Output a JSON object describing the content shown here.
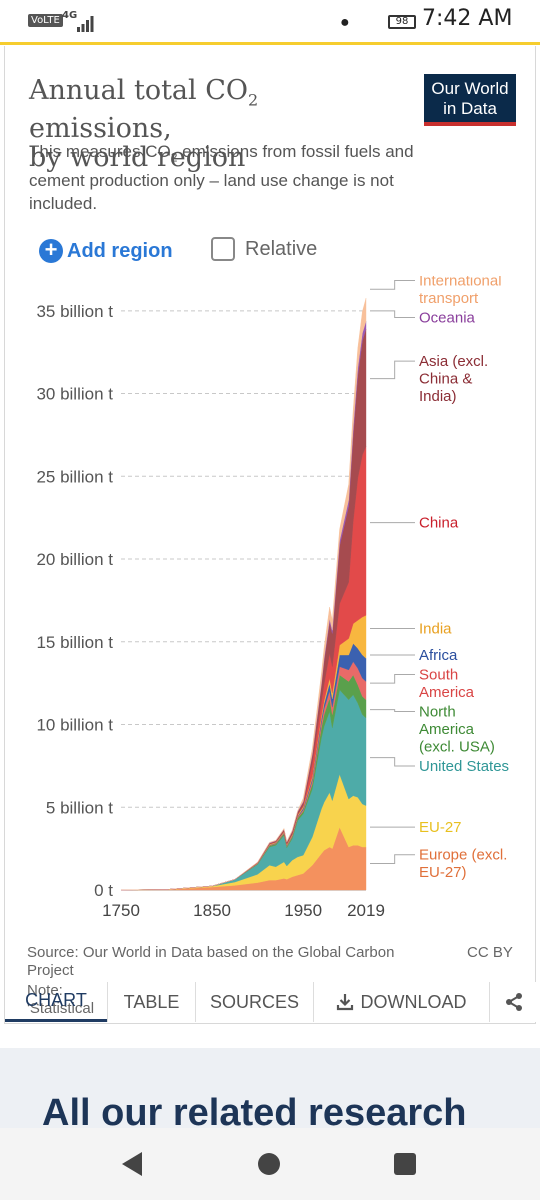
{
  "status_bar": {
    "volte": "VoLTE",
    "network": "4G",
    "battery": "98",
    "time": "7:42 AM"
  },
  "header": {
    "title_part1": "Annual total CO",
    "title_sub": "2",
    "title_part2": " emissions,",
    "title_line2": "by world region",
    "subtitle_part1": "This measures CO",
    "subtitle_sub": "2",
    "subtitle_part2": " emissions from fossil fuels and cement production only – land use change is not included.",
    "logo_line1": "Our World",
    "logo_line2": "in Data"
  },
  "controls": {
    "add_region": "Add region",
    "relative": "Relative",
    "relative_checked": false
  },
  "chart_data": {
    "type": "area",
    "stacked": true,
    "x_ticks": [
      "1750",
      "1850",
      "1950",
      "2019"
    ],
    "xlim": [
      1750,
      2019
    ],
    "y_ticks": [
      "0 t",
      "5 billion t",
      "10 billion t",
      "15 billion t",
      "20 billion t",
      "25 billion t",
      "30 billion t",
      "35 billion t"
    ],
    "y_tick_values": [
      0,
      5,
      10,
      15,
      20,
      25,
      30,
      35
    ],
    "ylim": [
      0,
      36.5
    ],
    "grid": "horizontal dashed",
    "legend_position": "right, inline labels",
    "x": [
      1750,
      1800,
      1850,
      1875,
      1900,
      1913,
      1920,
      1929,
      1932,
      1938,
      1944,
      1950,
      1960,
      1970,
      1973,
      1979,
      1982,
      1990,
      2000,
      2005,
      2010,
      2015,
      2019
    ],
    "series": [
      {
        "name": "Europe (excl. EU-27)",
        "color": "#f4915e",
        "values": [
          0.009,
          0.02,
          0.18,
          0.28,
          0.45,
          0.6,
          0.6,
          0.7,
          0.65,
          0.8,
          0.9,
          1.0,
          1.5,
          2.2,
          2.4,
          2.6,
          2.5,
          3.8,
          2.6,
          2.7,
          2.7,
          2.6,
          2.6
        ]
      },
      {
        "name": "EU-27",
        "color": "#f8d34d",
        "values": [
          0,
          0.01,
          0.05,
          0.2,
          0.5,
          0.9,
          0.8,
          1.0,
          0.8,
          1.0,
          1.1,
          1.1,
          1.7,
          2.7,
          2.9,
          3.3,
          2.9,
          3.2,
          2.9,
          3.0,
          2.9,
          2.6,
          2.5
        ]
      },
      {
        "name": "United States",
        "color": "#4eaba8",
        "values": [
          0,
          0.0,
          0.01,
          0.15,
          0.6,
          1.1,
          1.3,
          1.6,
          1.1,
          1.3,
          2.2,
          2.5,
          2.9,
          4.3,
          4.6,
          4.9,
          4.4,
          5.1,
          6.0,
          6.1,
          5.7,
          5.4,
          5.3
        ]
      },
      {
        "name": "North America (excl. USA)",
        "color": "#5aa04c",
        "values": [
          0,
          0,
          0,
          0.01,
          0.03,
          0.08,
          0.08,
          0.1,
          0.08,
          0.1,
          0.15,
          0.15,
          0.3,
          0.6,
          0.7,
          0.8,
          0.8,
          0.9,
          1.1,
          1.2,
          1.1,
          1.1,
          1.1
        ]
      },
      {
        "name": "South America",
        "color": "#e86a68",
        "values": [
          0,
          0,
          0,
          0,
          0.01,
          0.02,
          0.03,
          0.04,
          0.04,
          0.05,
          0.06,
          0.1,
          0.2,
          0.3,
          0.35,
          0.45,
          0.45,
          0.5,
          0.7,
          0.8,
          1.0,
          1.1,
          1.1
        ]
      },
      {
        "name": "Africa",
        "color": "#3b61b0",
        "values": [
          0,
          0,
          0,
          0,
          0.01,
          0.02,
          0.03,
          0.03,
          0.03,
          0.04,
          0.05,
          0.1,
          0.15,
          0.25,
          0.3,
          0.45,
          0.5,
          0.7,
          0.9,
          1.1,
          1.2,
          1.4,
          1.4
        ]
      },
      {
        "name": "India",
        "color": "#f8b73f",
        "values": [
          0,
          0,
          0,
          0,
          0.03,
          0.04,
          0.04,
          0.05,
          0.05,
          0.06,
          0.07,
          0.07,
          0.12,
          0.2,
          0.2,
          0.3,
          0.35,
          0.6,
          1.0,
          1.2,
          1.7,
          2.3,
          2.6
        ]
      },
      {
        "name": "China",
        "color": "#e24a4a",
        "values": [
          0,
          0,
          0,
          0,
          0.01,
          0.02,
          0.02,
          0.03,
          0.03,
          0.03,
          0.04,
          0.08,
          0.78,
          0.8,
          1.0,
          1.5,
          1.6,
          2.5,
          3.4,
          6.2,
          8.6,
          9.8,
          10.2
        ]
      },
      {
        "name": "Asia (excl. China & India)",
        "color": "#a64b4f",
        "values": [
          0,
          0,
          0,
          0,
          0.02,
          0.05,
          0.06,
          0.1,
          0.1,
          0.15,
          0.15,
          0.2,
          0.5,
          1.0,
          1.4,
          1.9,
          2.0,
          3.5,
          4.6,
          5.2,
          6.2,
          6.9,
          7.1
        ]
      },
      {
        "name": "Oceania",
        "color": "#9a59b5",
        "values": [
          0,
          0,
          0,
          0,
          0.01,
          0.02,
          0.02,
          0.02,
          0.02,
          0.03,
          0.03,
          0.05,
          0.08,
          0.12,
          0.15,
          0.2,
          0.2,
          0.3,
          0.38,
          0.42,
          0.45,
          0.46,
          0.46
        ]
      },
      {
        "name": "International transport",
        "color": "#f8c09a",
        "values": [
          0,
          0,
          0,
          0,
          0.02,
          0.03,
          0.03,
          0.05,
          0.04,
          0.06,
          0.05,
          0.2,
          0.35,
          0.6,
          0.65,
          0.7,
          0.6,
          0.7,
          0.95,
          1.1,
          1.2,
          1.3,
          1.4
        ]
      }
    ],
    "labels": [
      {
        "series": "International transport",
        "lines": [
          "International",
          "transport"
        ],
        "value_y": 36.3,
        "color": "#f0a06b"
      },
      {
        "series": "Oceania",
        "lines": [
          "Oceania"
        ],
        "value_y": 35.0,
        "color": "#8a3f9c"
      },
      {
        "series": "Asia (excl. China & India)",
        "lines": [
          "Asia (excl.",
          "China &",
          "India)"
        ],
        "value_y": 30.9,
        "color": "#8b2d35"
      },
      {
        "series": "China",
        "lines": [
          "China"
        ],
        "value_y": 22.2,
        "color": "#c91f2b"
      },
      {
        "series": "India",
        "lines": [
          "India"
        ],
        "value_y": 15.8,
        "color": "#e8a020"
      },
      {
        "series": "Africa",
        "lines": [
          "Africa"
        ],
        "value_y": 14.2,
        "color": "#2a4e9e"
      },
      {
        "series": "South America",
        "lines": [
          "South",
          "America"
        ],
        "value_y": 12.5,
        "color": "#d94545"
      },
      {
        "series": "North America (excl. USA)",
        "lines": [
          "North",
          "America",
          "(excl. USA)"
        ],
        "value_y": 10.9,
        "color": "#3e8a35"
      },
      {
        "series": "United States",
        "lines": [
          "United States"
        ],
        "value_y": 8.0,
        "color": "#2f9696"
      },
      {
        "series": "EU-27",
        "lines": [
          "EU-27"
        ],
        "value_y": 3.8,
        "color": "#e8c020"
      },
      {
        "series": "Europe (excl. EU-27)",
        "lines": [
          "Europe (excl.",
          "EU-27)"
        ],
        "value_y": 1.6,
        "color": "#e0703a"
      }
    ]
  },
  "footer": {
    "source": "Source: Our World in Data based on the Global Carbon Project",
    "license": "CC BY",
    "note": "Note: 'Statistical differences' included here"
  },
  "tabs": {
    "chart": "CHART",
    "table": "TABLE",
    "sources": "SOURCES",
    "download": "DOWNLOAD"
  },
  "related": {
    "heading": "All our related research"
  }
}
